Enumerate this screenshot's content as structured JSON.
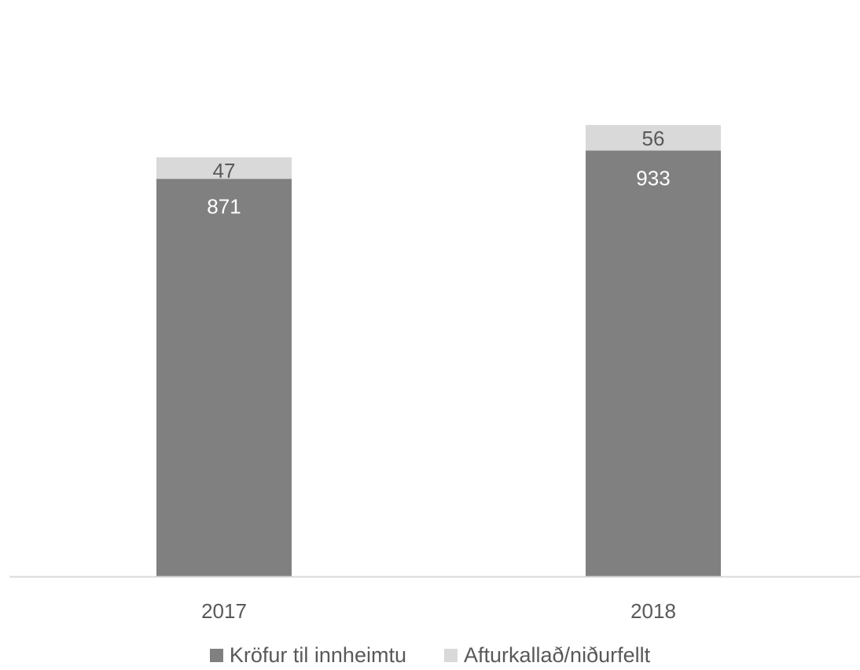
{
  "chart_data": {
    "type": "bar",
    "stacked": true,
    "categories": [
      "2017",
      "2018"
    ],
    "series": [
      {
        "name": "Kröfur til innheimtu",
        "values": [
          871,
          933
        ],
        "color": "#808080",
        "label_color": "#ffffff"
      },
      {
        "name": "Afturkallað/niðurfellt",
        "values": [
          47,
          56
        ],
        "color": "#d9d9d9",
        "label_color": "#595959"
      }
    ],
    "title": "",
    "xlabel": "",
    "ylabel": "",
    "ylim": [
      0,
      1000
    ],
    "grid": false,
    "legend_position": "bottom",
    "axis_color": "#d9d9d9",
    "tick_label_color": "#595959"
  }
}
